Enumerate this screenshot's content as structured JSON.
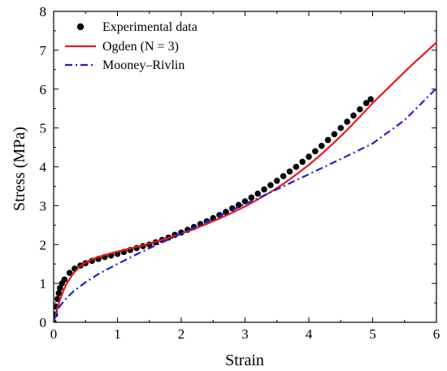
{
  "chart_data": {
    "type": "line",
    "title": "",
    "xlabel": "Strain",
    "ylabel": "Stress (MPa)",
    "xlim": [
      0,
      6
    ],
    "ylim": [
      0,
      8
    ],
    "x_ticks": [
      0,
      1,
      2,
      3,
      4,
      5,
      6
    ],
    "y_ticks": [
      0,
      1,
      2,
      3,
      4,
      5,
      6,
      7,
      8
    ],
    "grid": false,
    "legend_position": "top-left",
    "series": [
      {
        "name": "Experimental data",
        "kind": "scatter",
        "color": "#000000",
        "x": [
          0.0,
          0.02,
          0.04,
          0.06,
          0.08,
          0.1,
          0.13,
          0.17,
          0.25,
          0.33,
          0.42,
          0.5,
          0.6,
          0.7,
          0.8,
          0.9,
          1.0,
          1.1,
          1.2,
          1.3,
          1.4,
          1.5,
          1.6,
          1.7,
          1.8,
          1.9,
          2.0,
          2.1,
          2.2,
          2.3,
          2.4,
          2.5,
          2.6,
          2.7,
          2.8,
          2.9,
          3.0,
          3.1,
          3.2,
          3.3,
          3.4,
          3.5,
          3.6,
          3.7,
          3.8,
          3.9,
          4.0,
          4.1,
          4.2,
          4.3,
          4.4,
          4.5,
          4.6,
          4.7,
          4.8,
          4.9,
          4.97
        ],
        "y": [
          0.0,
          0.2,
          0.4,
          0.6,
          0.75,
          0.88,
          1.0,
          1.1,
          1.27,
          1.38,
          1.46,
          1.52,
          1.58,
          1.63,
          1.68,
          1.72,
          1.76,
          1.81,
          1.86,
          1.91,
          1.96,
          2.0,
          2.06,
          2.12,
          2.18,
          2.25,
          2.31,
          2.38,
          2.45,
          2.53,
          2.6,
          2.68,
          2.76,
          2.84,
          2.93,
          3.02,
          3.11,
          3.21,
          3.31,
          3.42,
          3.53,
          3.64,
          3.76,
          3.88,
          4.0,
          4.13,
          4.26,
          4.4,
          4.54,
          4.69,
          4.84,
          5.0,
          5.16,
          5.32,
          5.48,
          5.64,
          5.74
        ]
      },
      {
        "name": "Ogden (N = 3)",
        "kind": "line",
        "color": "#e8191f",
        "x": [
          0.0,
          0.05,
          0.1,
          0.15,
          0.2,
          0.3,
          0.4,
          0.5,
          0.6,
          0.7,
          0.8,
          1.0,
          1.2,
          1.4,
          1.6,
          1.8,
          2.0,
          2.2,
          2.4,
          2.6,
          2.8,
          3.0,
          3.2,
          3.4,
          3.6,
          3.8,
          4.0,
          4.2,
          4.4,
          4.6,
          4.8,
          5.0,
          5.2,
          5.4,
          5.6,
          5.8,
          6.0
        ],
        "y": [
          0.0,
          0.32,
          0.58,
          0.8,
          0.98,
          1.24,
          1.42,
          1.54,
          1.62,
          1.68,
          1.73,
          1.82,
          1.9,
          1.98,
          2.07,
          2.17,
          2.28,
          2.4,
          2.53,
          2.67,
          2.82,
          2.98,
          3.16,
          3.35,
          3.56,
          3.8,
          4.05,
          4.33,
          4.63,
          4.95,
          5.29,
          5.64,
          5.96,
          6.28,
          6.6,
          6.9,
          7.2
        ]
      },
      {
        "name": "Mooney–Rivlin",
        "kind": "line",
        "dash": "dashdot",
        "color": "#1f1fd6",
        "x": [
          0.0,
          0.05,
          0.1,
          0.2,
          0.3,
          0.5,
          0.7,
          1.0,
          1.3,
          1.6,
          2.0,
          2.5,
          3.0,
          3.5,
          4.0,
          4.5,
          5.0,
          5.5,
          6.0
        ],
        "y": [
          0.0,
          0.28,
          0.42,
          0.62,
          0.78,
          1.03,
          1.24,
          1.5,
          1.75,
          1.98,
          2.28,
          2.66,
          3.04,
          3.42,
          3.81,
          4.2,
          4.6,
          5.2,
          6.02
        ]
      }
    ]
  }
}
